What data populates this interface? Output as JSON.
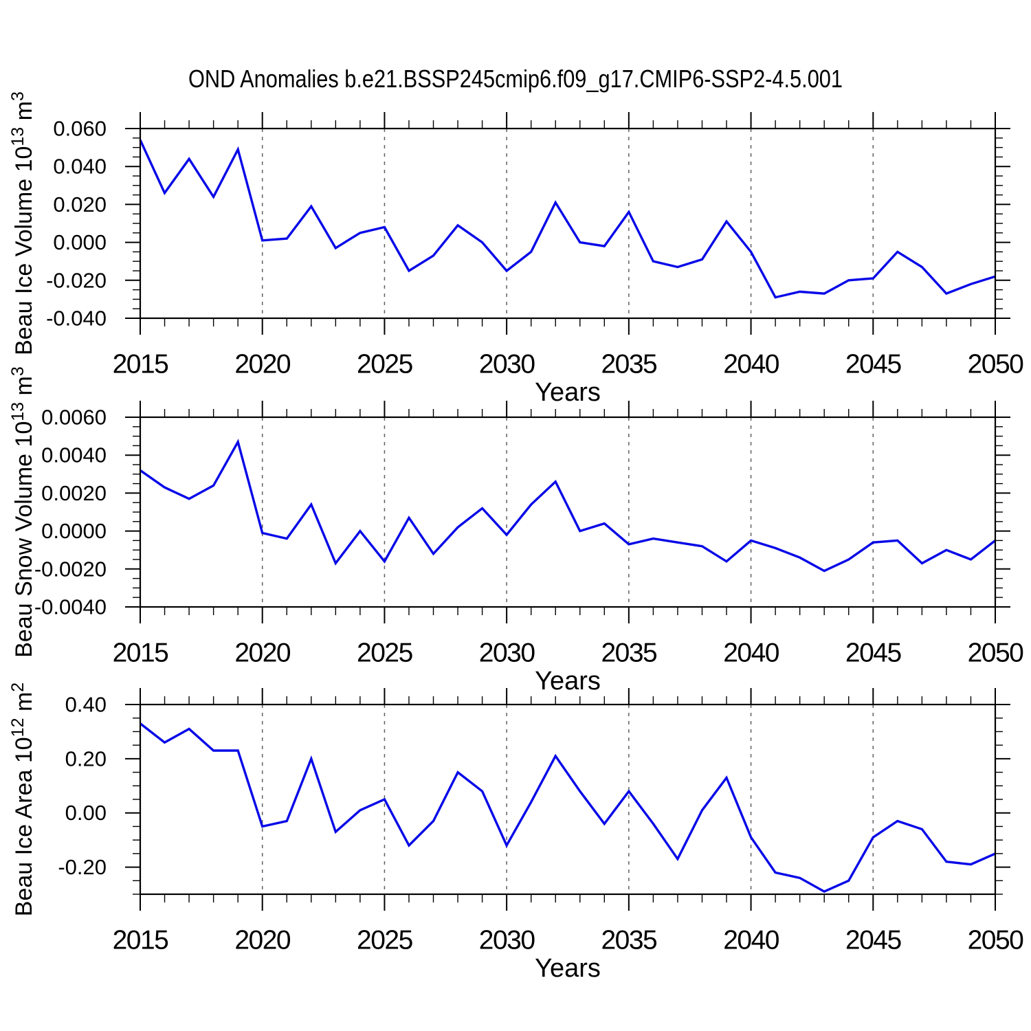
{
  "title": "OND Anomalies b.e21.BSSP245cmip6.f09_g17.CMIP6-SSP2-4.5.001",
  "colors": {
    "line": "#0808e8",
    "grid": "#606060",
    "axis": "#000000"
  },
  "chart_data": [
    {
      "type": "line",
      "id": "beau-ice-volume",
      "ylabel": "Beau Ice Volume 10^13 m^3",
      "ylabel_segments": [
        [
          "Beau Ice Volume 10",
          false
        ],
        [
          "13",
          true
        ],
        [
          " m",
          false
        ],
        [
          "3",
          true
        ]
      ],
      "xlabel": "Years",
      "xlim": [
        2015,
        2050
      ],
      "ylim": [
        -0.04,
        0.06
      ],
      "ytick_major_step": 0.02,
      "ytick_minor_step": 0.005,
      "xtick_major_step": 5,
      "xtick_minor_step": 1,
      "grid_style": "dashed",
      "grid_x": [
        2020,
        2025,
        2030,
        2035,
        2040,
        2045
      ],
      "yticks": [
        {
          "value": 0.06,
          "label": "0.060"
        },
        {
          "value": 0.04,
          "label": "0.040"
        },
        {
          "value": 0.02,
          "label": "0.020"
        },
        {
          "value": 0.0,
          "label": "0.000"
        },
        {
          "value": -0.02,
          "label": "-0.020"
        },
        {
          "value": -0.04,
          "label": "-0.040"
        }
      ],
      "xticks": [
        {
          "value": 2015,
          "label": "2015"
        },
        {
          "value": 2020,
          "label": "2020"
        },
        {
          "value": 2025,
          "label": "2025"
        },
        {
          "value": 2030,
          "label": "2030"
        },
        {
          "value": 2035,
          "label": "2035"
        },
        {
          "value": 2040,
          "label": "2040"
        },
        {
          "value": 2045,
          "label": "2045"
        },
        {
          "value": 2050,
          "label": "2050"
        }
      ],
      "x": [
        2015,
        2016,
        2017,
        2018,
        2019,
        2020,
        2021,
        2022,
        2023,
        2024,
        2025,
        2026,
        2027,
        2028,
        2029,
        2030,
        2031,
        2032,
        2033,
        2034,
        2035,
        2036,
        2037,
        2038,
        2039,
        2040,
        2041,
        2042,
        2043,
        2044,
        2045,
        2046,
        2047,
        2048,
        2049,
        2050
      ],
      "values": [
        0.054,
        0.026,
        0.044,
        0.024,
        0.049,
        0.001,
        0.002,
        0.019,
        -0.003,
        0.005,
        0.008,
        -0.015,
        -0.007,
        0.009,
        0.0,
        -0.015,
        -0.005,
        0.021,
        0.0,
        -0.002,
        0.016,
        -0.01,
        -0.013,
        -0.009,
        0.011,
        -0.005,
        -0.029,
        -0.026,
        -0.027,
        -0.02,
        -0.019,
        -0.005,
        -0.013,
        -0.027,
        -0.022,
        -0.018
      ]
    },
    {
      "type": "line",
      "id": "beau-snow-volume",
      "ylabel": "Beau Snow Volume 10^13 m^3",
      "ylabel_segments": [
        [
          "Beau Snow Volume 10",
          false
        ],
        [
          "13",
          true
        ],
        [
          " m",
          false
        ],
        [
          "3",
          true
        ]
      ],
      "xlabel": "Years",
      "xlim": [
        2015,
        2050
      ],
      "ylim": [
        -0.004,
        0.006
      ],
      "ytick_major_step": 0.002,
      "ytick_minor_step": 0.0005,
      "xtick_major_step": 5,
      "xtick_minor_step": 1,
      "grid_style": "dashed",
      "grid_x": [
        2020,
        2025,
        2030,
        2035,
        2040,
        2045
      ],
      "yticks": [
        {
          "value": 0.006,
          "label": "0.0060"
        },
        {
          "value": 0.004,
          "label": "0.0040"
        },
        {
          "value": 0.002,
          "label": "0.0020"
        },
        {
          "value": 0.0,
          "label": "0.0000"
        },
        {
          "value": -0.002,
          "label": "-0.0020"
        },
        {
          "value": -0.004,
          "label": "-0.0040"
        }
      ],
      "xticks": [
        {
          "value": 2015,
          "label": "2015"
        },
        {
          "value": 2020,
          "label": "2020"
        },
        {
          "value": 2025,
          "label": "2025"
        },
        {
          "value": 2030,
          "label": "2030"
        },
        {
          "value": 2035,
          "label": "2035"
        },
        {
          "value": 2040,
          "label": "2040"
        },
        {
          "value": 2045,
          "label": "2045"
        },
        {
          "value": 2050,
          "label": "2050"
        }
      ],
      "x": [
        2015,
        2016,
        2017,
        2018,
        2019,
        2020,
        2021,
        2022,
        2023,
        2024,
        2025,
        2026,
        2027,
        2028,
        2029,
        2030,
        2031,
        2032,
        2033,
        2034,
        2035,
        2036,
        2037,
        2038,
        2039,
        2040,
        2041,
        2042,
        2043,
        2044,
        2045,
        2046,
        2047,
        2048,
        2049,
        2050
      ],
      "values": [
        0.0032,
        0.0023,
        0.0017,
        0.0024,
        0.0047,
        -0.0001,
        -0.0004,
        0.0014,
        -0.0017,
        0.0,
        -0.0016,
        0.0007,
        -0.0012,
        0.0002,
        0.0012,
        -0.0002,
        0.0014,
        0.0026,
        0.0,
        0.0004,
        -0.0007,
        -0.0004,
        -0.0006,
        -0.0008,
        -0.0016,
        -0.0005,
        -0.0009,
        -0.0014,
        -0.0021,
        -0.0015,
        -0.0006,
        -0.0005,
        -0.0017,
        -0.001,
        -0.0015,
        -0.0005
      ]
    },
    {
      "type": "line",
      "id": "beau-ice-area",
      "ylabel": "Beau Ice Area 10^12 m^2",
      "ylabel_segments": [
        [
          "Beau Ice Area 10",
          false
        ],
        [
          "12",
          true
        ],
        [
          " m",
          false
        ],
        [
          "2",
          true
        ]
      ],
      "xlabel": "Years",
      "xlim": [
        2015,
        2050
      ],
      "ylim": [
        -0.3,
        0.4
      ],
      "ytick_major_step": 0.2,
      "ytick_minor_step": 0.05,
      "xtick_major_step": 5,
      "xtick_minor_step": 1,
      "grid_style": "dashed",
      "grid_x": [
        2020,
        2025,
        2030,
        2035,
        2040,
        2045
      ],
      "yticks": [
        {
          "value": 0.4,
          "label": "0.40"
        },
        {
          "value": 0.2,
          "label": "0.20"
        },
        {
          "value": 0.0,
          "label": "0.00"
        },
        {
          "value": -0.2,
          "label": "-0.20"
        }
      ],
      "xticks": [
        {
          "value": 2015,
          "label": "2015"
        },
        {
          "value": 2020,
          "label": "2020"
        },
        {
          "value": 2025,
          "label": "2025"
        },
        {
          "value": 2030,
          "label": "2030"
        },
        {
          "value": 2035,
          "label": "2035"
        },
        {
          "value": 2040,
          "label": "2040"
        },
        {
          "value": 2045,
          "label": "2045"
        },
        {
          "value": 2050,
          "label": "2050"
        }
      ],
      "x": [
        2015,
        2016,
        2017,
        2018,
        2019,
        2020,
        2021,
        2022,
        2023,
        2024,
        2025,
        2026,
        2027,
        2028,
        2029,
        2030,
        2031,
        2032,
        2033,
        2034,
        2035,
        2036,
        2037,
        2038,
        2039,
        2040,
        2041,
        2042,
        2043,
        2044,
        2045,
        2046,
        2047,
        2048,
        2049,
        2050
      ],
      "values": [
        0.33,
        0.26,
        0.31,
        0.23,
        0.23,
        -0.05,
        -0.03,
        0.2,
        -0.07,
        0.01,
        0.05,
        -0.12,
        -0.03,
        0.15,
        0.08,
        -0.12,
        0.04,
        0.21,
        0.08,
        -0.04,
        0.08,
        -0.04,
        -0.17,
        0.01,
        0.13,
        -0.09,
        -0.22,
        -0.24,
        -0.29,
        -0.25,
        -0.09,
        -0.03,
        -0.06,
        -0.18,
        -0.19,
        -0.15
      ]
    }
  ]
}
